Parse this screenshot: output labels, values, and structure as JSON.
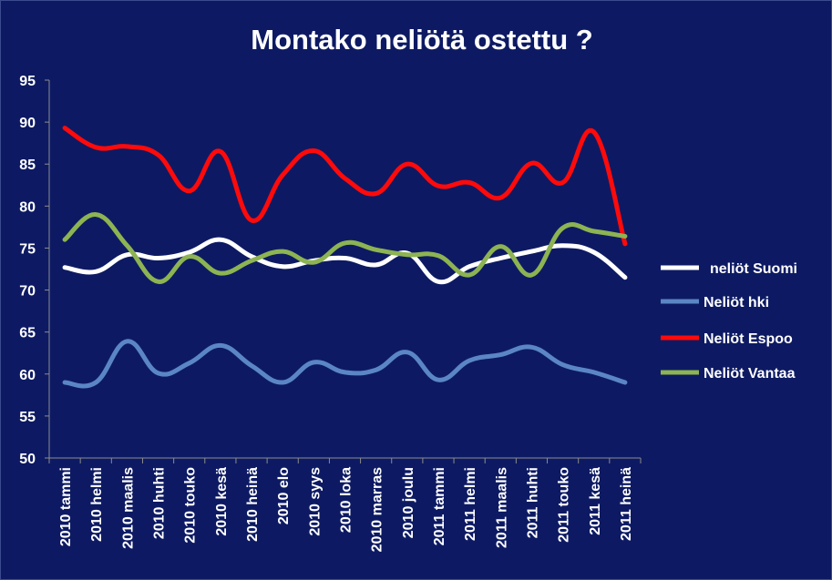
{
  "chart_data": {
    "type": "line",
    "title": "Montako neliötä ostettu ?",
    "xlabel": "",
    "ylabel": "",
    "ylim": [
      50,
      95
    ],
    "yticks": [
      50,
      55,
      60,
      65,
      70,
      75,
      80,
      85,
      90,
      95
    ],
    "grid": false,
    "legend": "right",
    "categories": [
      "2010 tammi",
      "2010 helmi",
      "2010 maalis",
      "2010 huhti",
      "2010 touko",
      "2010 kesä",
      "2010 heinä",
      "2010 elo",
      "2010 syys",
      "2010 loka",
      "2010 marras",
      "2010 joulu",
      "2011 tammi",
      "2011 helmi",
      "2011 maalis",
      "2011 huhti",
      "2011 touko",
      "2011 kesä",
      "2011 heinä"
    ],
    "series": [
      {
        "name": "neliöt Suomi",
        "color": "#ffffff",
        "values": [
          72.7,
          72.2,
          74.2,
          73.8,
          74.5,
          76.0,
          74.0,
          72.8,
          73.5,
          73.8,
          73.0,
          74.4,
          71.0,
          72.8,
          73.8,
          74.6,
          75.3,
          74.5,
          71.5
        ]
      },
      {
        "name": "Neliöt hki",
        "color": "#5b86c5",
        "values": [
          59.0,
          59.0,
          63.9,
          60.1,
          61.3,
          63.4,
          61.0,
          59.0,
          61.4,
          60.2,
          60.5,
          62.6,
          59.3,
          61.6,
          62.3,
          63.2,
          61.1,
          60.2,
          59.0
        ]
      },
      {
        "name": "Neliöt Espoo",
        "color": "#ff0a0a",
        "values": [
          89.3,
          87.0,
          87.1,
          86.1,
          81.8,
          86.5,
          78.3,
          83.7,
          86.6,
          83.3,
          81.5,
          85.0,
          82.4,
          82.8,
          81.0,
          85.1,
          82.8,
          88.8,
          75.5
        ]
      },
      {
        "name": "Neliöt Vantaa",
        "color": "#8db352",
        "values": [
          76.0,
          79.0,
          75.3,
          71.0,
          74.0,
          72.0,
          73.5,
          74.6,
          73.3,
          75.6,
          74.8,
          74.2,
          74.1,
          71.8,
          75.2,
          71.8,
          77.4,
          77.0,
          76.4
        ]
      }
    ]
  }
}
